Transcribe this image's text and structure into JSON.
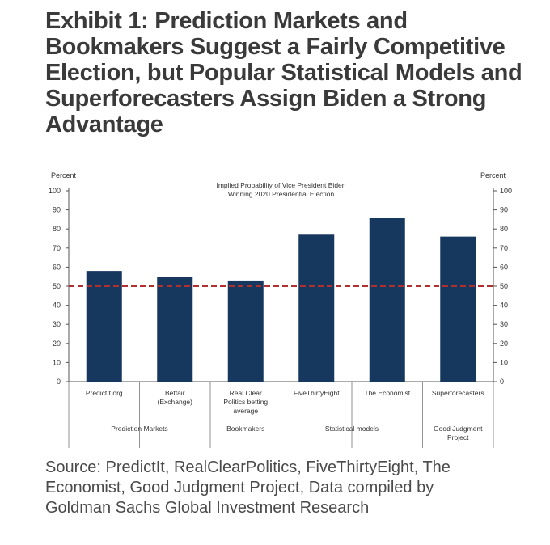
{
  "title_lines": [
    "Exhibit 1: Prediction Markets and",
    "Bookmakers Suggest a Fairly Competitive",
    "Election, but Popular Statistical Models and",
    "Superforecasters Assign Biden a Strong",
    "Advantage"
  ],
  "source_lines": [
    "Source: PredictIt, RealClearPolitics, FiveThirtyEight, The",
    "Economist, Good Judgment Project, Data compiled by",
    "Goldman Sachs Global Investment Research"
  ],
  "colors": {
    "bar": "#16375e",
    "reference_line": "#b03030",
    "axis": "#555555"
  },
  "chart_data": {
    "type": "bar",
    "title": [
      "Implied Probability of Vice President Biden",
      "Winning 2020 Presidential Election"
    ],
    "ylabel_left": "Percent",
    "ylabel_right": "Percent",
    "ylim": [
      0,
      100
    ],
    "yticks": [
      0,
      10,
      20,
      30,
      40,
      50,
      60,
      70,
      80,
      90,
      100
    ],
    "categories": [
      [
        "PredictIt.org"
      ],
      [
        "Betfair",
        "(Exchange)"
      ],
      [
        "Real Clear",
        "Politics betting",
        "average"
      ],
      [
        "FiveThirtyEight"
      ],
      [
        "The Economist"
      ],
      [
        "Superforecasters"
      ]
    ],
    "values": [
      58,
      55,
      53,
      77,
      86,
      76
    ],
    "reference_line": 50,
    "groups": [
      {
        "label": [
          "Prediction Markets"
        ],
        "start": 0,
        "end": 1
      },
      {
        "label": [
          "Bookmakers"
        ],
        "start": 2,
        "end": 2
      },
      {
        "label": [
          "Statistical models"
        ],
        "start": 3,
        "end": 4
      },
      {
        "label": [
          "Good Judgment",
          "Project"
        ],
        "start": 5,
        "end": 5
      }
    ]
  }
}
